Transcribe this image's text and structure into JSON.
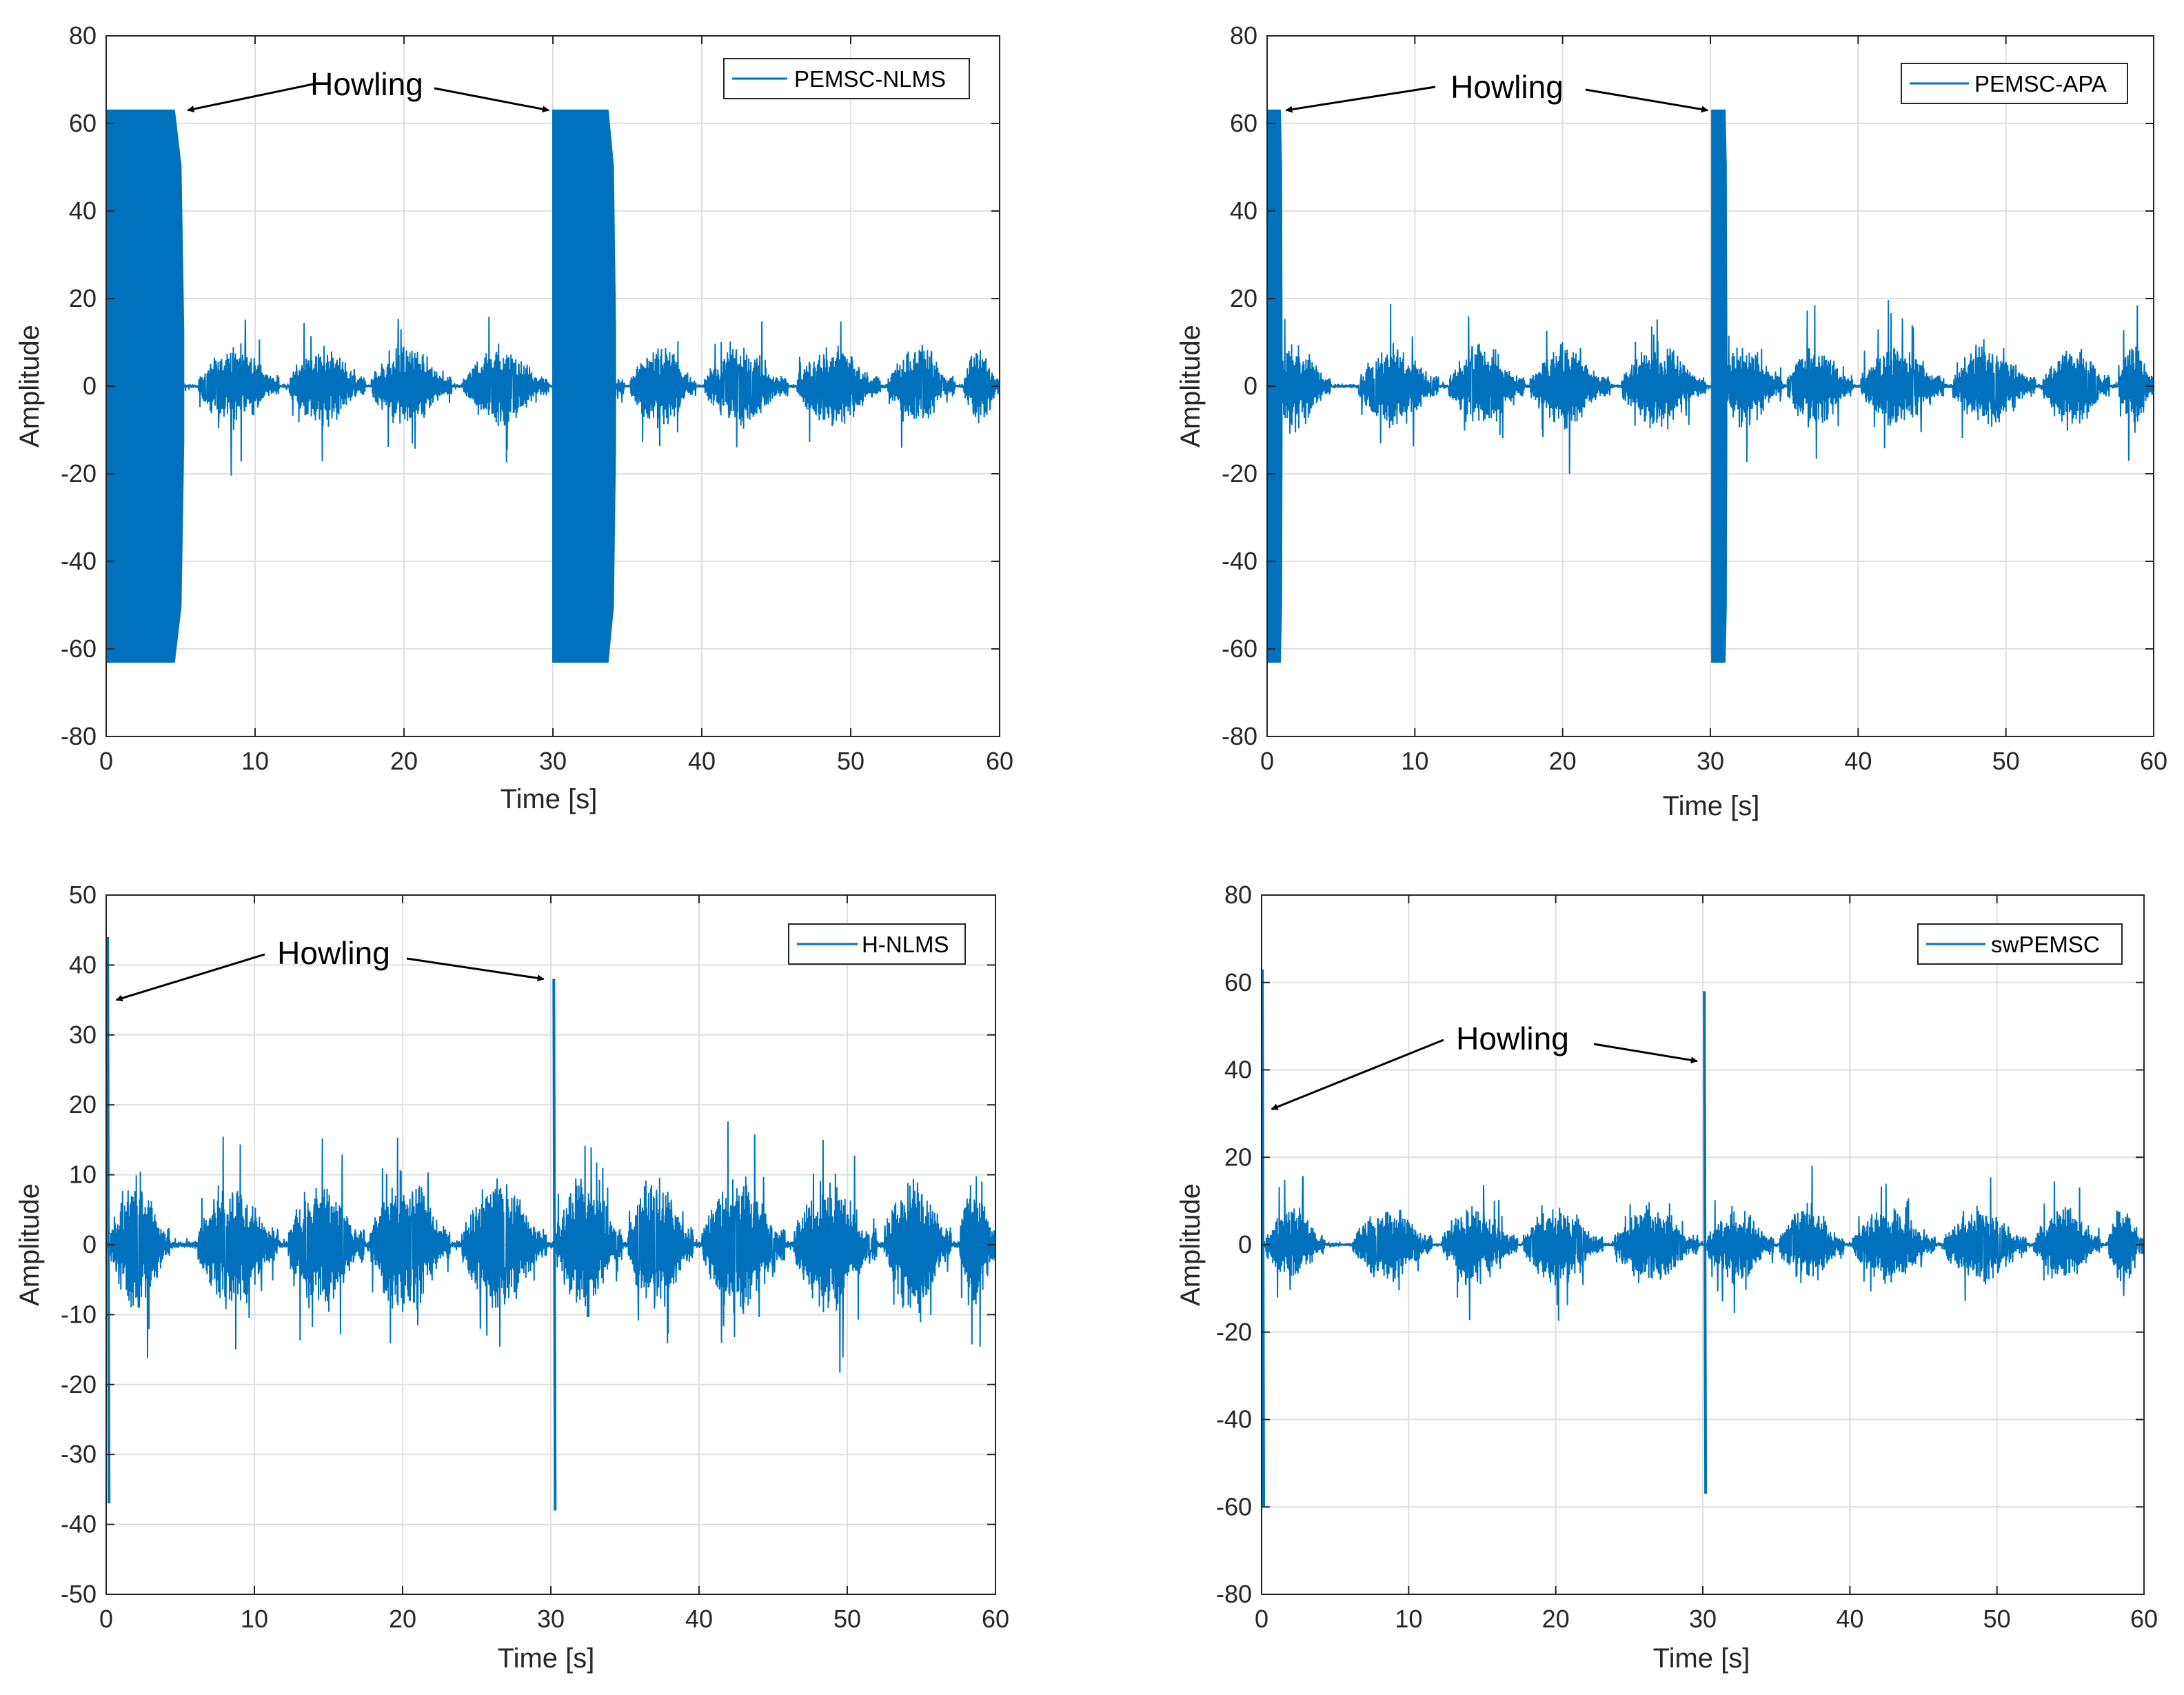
{
  "chart_data": [
    {
      "type": "line",
      "title": "",
      "xlabel": "Time [s]",
      "ylabel": "Amplitude",
      "xlim": [
        0,
        60
      ],
      "ylim": [
        -80,
        80
      ],
      "xticks": [
        0,
        10,
        20,
        30,
        40,
        50,
        60
      ],
      "yticks": [
        -80,
        -60,
        -40,
        -20,
        0,
        20,
        40,
        60,
        80
      ],
      "xtick_labels": [
        "0",
        "10",
        "20",
        "30",
        "40",
        "50",
        "60"
      ],
      "ytick_labels": [
        "-80",
        "-60",
        "-40",
        "-20",
        "0",
        "20",
        "40",
        "60",
        "80"
      ],
      "grid": true,
      "legend": "top-right",
      "series": [
        {
          "name": "PEMSC-NLMS",
          "color": "#0072bd"
        }
      ],
      "howling_bursts": [
        {
          "start": 0,
          "end": 5.2,
          "amplitude": 63
        },
        {
          "start": 30.0,
          "end": 34.2,
          "amplitude": 63
        }
      ],
      "speech_peak": 21,
      "annotation": {
        "text": "Howling",
        "points_to": [
          {
            "x": 5.2,
            "y": 63
          },
          {
            "x": 30.0,
            "y": 63
          }
        ]
      }
    },
    {
      "type": "line",
      "title": "",
      "xlabel": "Time [s]",
      "ylabel": "Amplitude",
      "xlim": [
        0,
        60
      ],
      "ylim": [
        -80,
        80
      ],
      "xticks": [
        0,
        10,
        20,
        30,
        40,
        50,
        60
      ],
      "yticks": [
        -80,
        -60,
        -40,
        -20,
        0,
        20,
        40,
        60,
        80
      ],
      "xtick_labels": [
        "0",
        "10",
        "20",
        "30",
        "40",
        "50",
        "60"
      ],
      "ytick_labels": [
        "-80",
        "-60",
        "-40",
        "-20",
        "0",
        "20",
        "40",
        "60",
        "80"
      ],
      "grid": true,
      "legend": "top-right",
      "series": [
        {
          "name": "PEMSC-APA",
          "color": "#0072bd"
        }
      ],
      "howling_bursts": [
        {
          "start": 0,
          "end": 1.0,
          "amplitude": 63
        },
        {
          "start": 30.1,
          "end": 31.1,
          "amplitude": 63
        }
      ],
      "speech_peak": 22,
      "annotation": {
        "text": "Howling",
        "points_to": [
          {
            "x": 1.0,
            "y": 63
          },
          {
            "x": 30.1,
            "y": 63
          }
        ]
      }
    },
    {
      "type": "line",
      "title": "",
      "xlabel": "Time [s]",
      "ylabel": "Amplitude",
      "xlim": [
        0,
        60
      ],
      "ylim": [
        -50,
        50
      ],
      "xticks": [
        0,
        10,
        20,
        30,
        40,
        50,
        60
      ],
      "yticks": [
        -50,
        -40,
        -30,
        -20,
        -10,
        0,
        10,
        20,
        30,
        40,
        50
      ],
      "xtick_labels": [
        "0",
        "10",
        "20",
        "30",
        "40",
        "50",
        "60"
      ],
      "ytick_labels": [
        "-50",
        "-40",
        "-30",
        "-20",
        "-10",
        "0",
        "10",
        "20",
        "30",
        "40",
        "50"
      ],
      "grid": true,
      "legend": "top-right",
      "series": [
        {
          "name": "H-NLMS",
          "color": "#0072bd"
        }
      ],
      "spikes": [
        {
          "x": 0.1,
          "high": 44,
          "low": -37
        },
        {
          "x": 30.2,
          "high": 38,
          "low": -38
        }
      ],
      "speech_peak": 22,
      "annotation": {
        "text": "Howling",
        "points_to": [
          {
            "x": 0.4,
            "y": 35
          },
          {
            "x": 29.8,
            "y": 38
          }
        ]
      }
    },
    {
      "type": "line",
      "title": "",
      "xlabel": "Time [s]",
      "ylabel": "Amplitude",
      "xlim": [
        0,
        60
      ],
      "ylim": [
        -80,
        80
      ],
      "xticks": [
        0,
        10,
        20,
        30,
        40,
        50,
        60
      ],
      "yticks": [
        -80,
        -60,
        -40,
        -20,
        0,
        20,
        40,
        60,
        80
      ],
      "xtick_labels": [
        "0",
        "10",
        "20",
        "30",
        "40",
        "50",
        "60"
      ],
      "ytick_labels": [
        "-80",
        "-60",
        "-40",
        "-20",
        "0",
        "20",
        "40",
        "60",
        "80"
      ],
      "grid": true,
      "legend": "top-right",
      "series": [
        {
          "name": "swPEMSC",
          "color": "#0072bd"
        }
      ],
      "spikes": [
        {
          "x": 0.05,
          "high": 63,
          "low": -60
        },
        {
          "x": 30.1,
          "high": 58,
          "low": -57
        }
      ],
      "speech_peak": 20,
      "annotation": {
        "text": "Howling",
        "points_to": [
          {
            "x": 0.4,
            "y": 31
          },
          {
            "x": 29.9,
            "y": 42
          }
        ]
      }
    }
  ]
}
